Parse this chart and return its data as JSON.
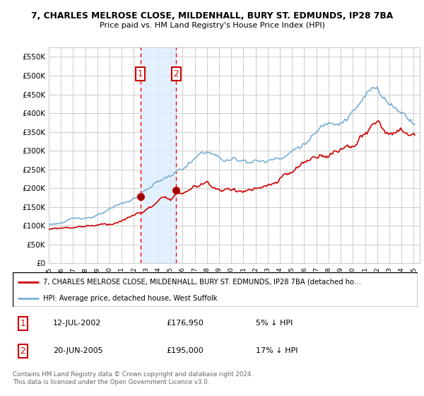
{
  "title_line1": "7, CHARLES MELROSE CLOSE, MILDENHALL, BURY ST. EDMUNDS, IP28 7BA",
  "title_line2": "Price paid vs. HM Land Registry's House Price Index (HPI)",
  "ylim": [
    0,
    575000
  ],
  "yticks": [
    0,
    50000,
    100000,
    150000,
    200000,
    250000,
    300000,
    350000,
    400000,
    450000,
    500000,
    550000
  ],
  "ytick_labels": [
    "£0",
    "£50K",
    "£100K",
    "£150K",
    "£200K",
    "£250K",
    "£300K",
    "£350K",
    "£400K",
    "£450K",
    "£500K",
    "£550K"
  ],
  "background_color": "#ffffff",
  "grid_color": "#cccccc",
  "transaction1": {
    "year": 2002.53,
    "price": 176950,
    "label": "1",
    "date_str": "12-JUL-2002",
    "price_str": "£176,950",
    "pct_str": "5% ↓ HPI"
  },
  "transaction2": {
    "year": 2005.47,
    "price": 195000,
    "label": "2",
    "date_str": "20-JUN-2005",
    "price_str": "£195,000",
    "pct_str": "17% ↓ HPI"
  },
  "legend_line1": "7, CHARLES MELROSE CLOSE, MILDENHALL, BURY ST. EDMUNDS, IP28 7BA (detached ho…",
  "legend_line2": "HPI: Average price, detached house, West Suffolk",
  "footer": "Contains HM Land Registry data © Crown copyright and database right 2024.\nThis data is licensed under the Open Government Licence v3.0.",
  "line_red_color": "#cc0000",
  "line_blue_color": "#7aafd4",
  "marker_box_color": "#cc0000",
  "shade_color": "#ddeeff",
  "xmin": 1995,
  "xmax": 2025.5
}
